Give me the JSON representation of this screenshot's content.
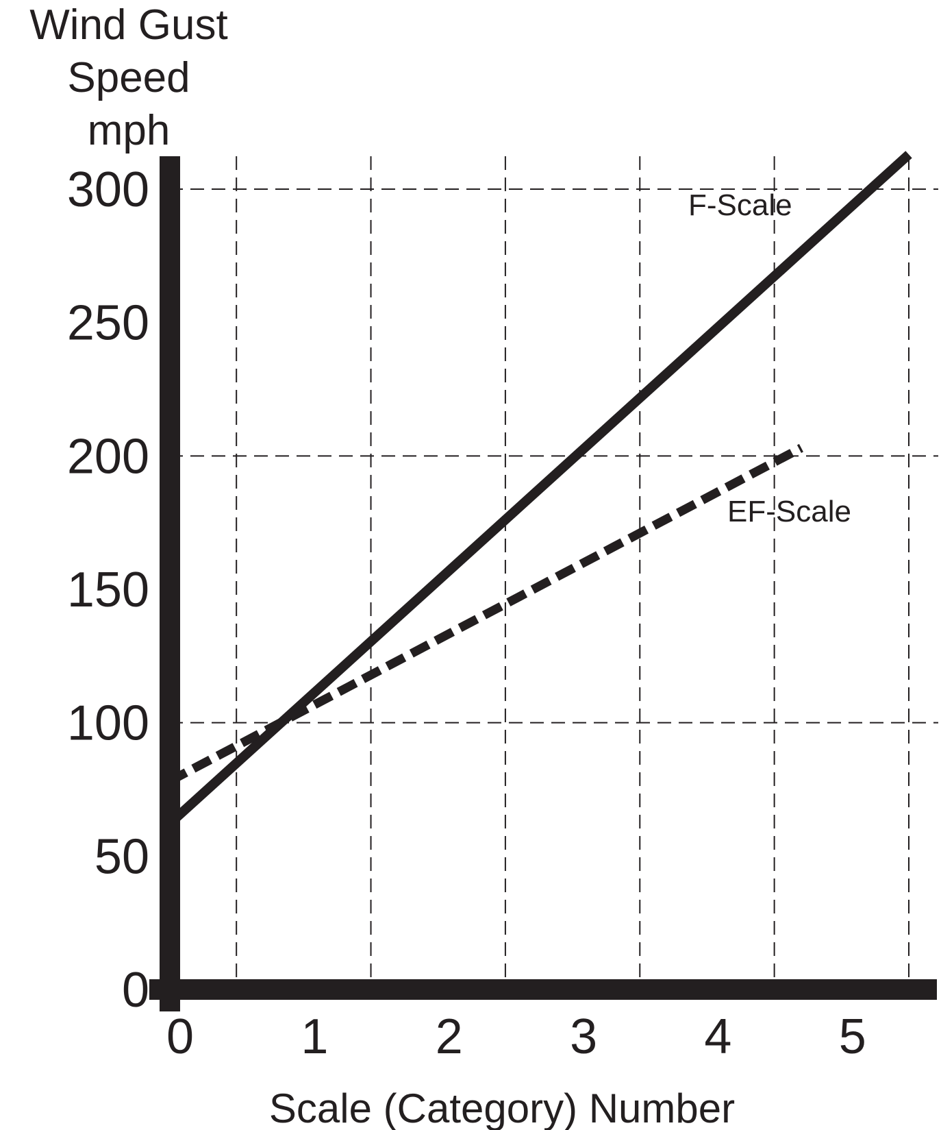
{
  "chart_data": {
    "type": "line",
    "title": "",
    "ylabel_lines": [
      "Wind Gust",
      "Speed",
      "mph"
    ],
    "xlabel": "Scale (Category) Number",
    "xlim": [
      0,
      5.5
    ],
    "ylim": [
      0,
      300
    ],
    "x_ticks": [
      0,
      1,
      2,
      3,
      4,
      5
    ],
    "x_tick_labels": [
      "0",
      "1",
      "2",
      "3",
      "4",
      "5"
    ],
    "y_ticks": [
      0,
      50,
      100,
      150,
      200,
      250,
      300
    ],
    "y_tick_labels": [
      "0",
      "50",
      "100",
      "150",
      "200",
      "250",
      "300"
    ],
    "x_gridlines": [
      0.5,
      1.5,
      2.5,
      3.5,
      4.5,
      5.5
    ],
    "y_gridlines": [
      100,
      200,
      300
    ],
    "grid": true,
    "series": [
      {
        "name": "F-Scale",
        "style": "solid",
        "x": [
          0,
          5.5
        ],
        "y": [
          62,
          313
        ]
      },
      {
        "name": "EF-Scale",
        "style": "dashed",
        "x": [
          0,
          4.7
        ],
        "y": [
          78,
          203
        ]
      }
    ],
    "colors": {
      "ink": "#231f20",
      "background": "#ffffff"
    }
  }
}
